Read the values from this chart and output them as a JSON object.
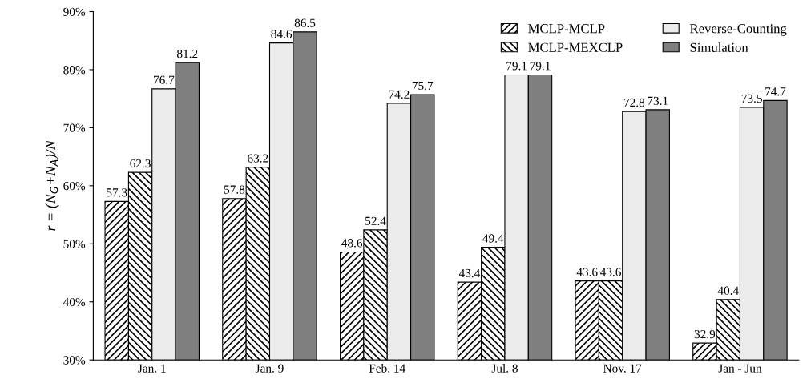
{
  "chart_data": {
    "type": "bar",
    "ylabel": "r = (N$_{G}$+N$_{A}$)/N",
    "categories": [
      "Jan. 1",
      "Jan. 9",
      "Feb. 14",
      "Jul. 8",
      "Nov. 17",
      "Jan - Jun"
    ],
    "series": [
      {
        "name": "MCLP-MCLP",
        "color": "#000000",
        "values": [
          57.3,
          57.8,
          48.6,
          43.4,
          43.6,
          32.9
        ]
      },
      {
        "name": "MCLP-MEXCLP",
        "color": "#000000",
        "values": [
          62.3,
          63.2,
          52.4,
          49.4,
          43.6,
          40.4
        ]
      },
      {
        "name": "Reverse-Counting",
        "color": "#ebebeb",
        "values": [
          76.7,
          84.6,
          74.2,
          79.1,
          72.8,
          73.5
        ]
      },
      {
        "name": "Simulation",
        "color": "#7f7f7f",
        "values": [
          81.2,
          86.5,
          75.7,
          79.1,
          73.1,
          74.7
        ]
      }
    ],
    "ylim": [
      30,
      90
    ],
    "yticks": [
      {
        "value": 30,
        "label": "30%"
      },
      {
        "value": 40,
        "label": "40%"
      },
      {
        "value": 50,
        "label": "50%"
      },
      {
        "value": 60,
        "label": "60%"
      },
      {
        "value": 70,
        "label": "70%"
      },
      {
        "value": 80,
        "label": "80%"
      },
      {
        "value": 90,
        "label": "90%"
      }
    ],
    "data_labels": true,
    "legend": "top right",
    "grid": false
  }
}
